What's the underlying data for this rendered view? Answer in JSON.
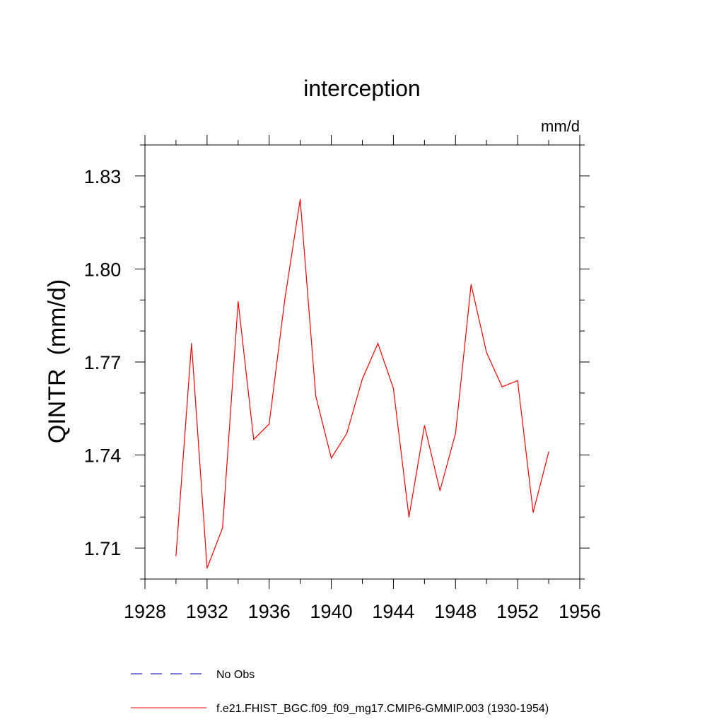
{
  "chart_data": {
    "type": "line",
    "title": "interception",
    "units": "mm/d",
    "ylabel": "QINTR  (mm/d)",
    "xlabel": "",
    "xlim": [
      1928,
      1956
    ],
    "ylim": [
      1.7,
      1.84
    ],
    "x_ticks": [
      1928,
      1932,
      1936,
      1940,
      1944,
      1948,
      1952,
      1956
    ],
    "x_tick_labels": [
      "1928",
      "1932",
      "1936",
      "1940",
      "1944",
      "1948",
      "1952",
      "1956"
    ],
    "y_ticks": [
      1.71,
      1.74,
      1.77,
      1.8,
      1.83
    ],
    "y_tick_labels": [
      "1.71",
      "1.74",
      "1.77",
      "1.80",
      "1.83"
    ],
    "grid": false,
    "legend_placement": "bottom",
    "series": [
      {
        "name": "f.e21.FHIST_BGC.f09_f09_mg17.CMIP6-GMMIP.003 (1930-1954)",
        "color": "#ff0000",
        "dash": "solid",
        "x": [
          1930,
          1931,
          1932,
          1933,
          1934,
          1935,
          1936,
          1937,
          1938,
          1939,
          1940,
          1941,
          1942,
          1943,
          1944,
          1945,
          1946,
          1947,
          1948,
          1949,
          1950,
          1951,
          1952,
          1953,
          1954
        ],
        "values": [
          1.7075,
          1.776,
          1.7035,
          1.7165,
          1.7895,
          1.745,
          1.75,
          1.79,
          1.8225,
          1.759,
          1.739,
          1.747,
          1.7645,
          1.776,
          1.7615,
          1.72,
          1.7495,
          1.7285,
          1.747,
          1.795,
          1.773,
          1.762,
          1.764,
          1.7215,
          1.741
        ]
      }
    ],
    "legend": [
      {
        "label": "No Obs",
        "color": "#0000aa",
        "dash": "dashed"
      },
      {
        "label": "f.e21.FHIST_BGC.f09_f09_mg17.CMIP6-GMMIP.003 (1930-1954)",
        "color": "#ff0000",
        "dash": "solid"
      }
    ]
  }
}
